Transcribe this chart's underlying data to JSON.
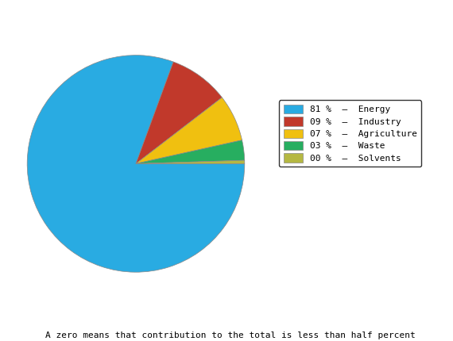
{
  "sectors": [
    "Energy",
    "Industry",
    "Agriculture",
    "Waste",
    "Solvents"
  ],
  "values": [
    81,
    9,
    7,
    3,
    0.5
  ],
  "display_pcts": [
    "81 %",
    "09 %",
    "07 %",
    "03 %",
    "00 %"
  ],
  "colors": [
    "#29ABE2",
    "#C1392B",
    "#F0C010",
    "#27AE60",
    "#B5B842"
  ],
  "footnote": "A zero means that contribution to the total is less than half percent",
  "background_color": "#FFFFFF",
  "pie_edge_color": "#888888",
  "pie_linewidth": 0.5
}
